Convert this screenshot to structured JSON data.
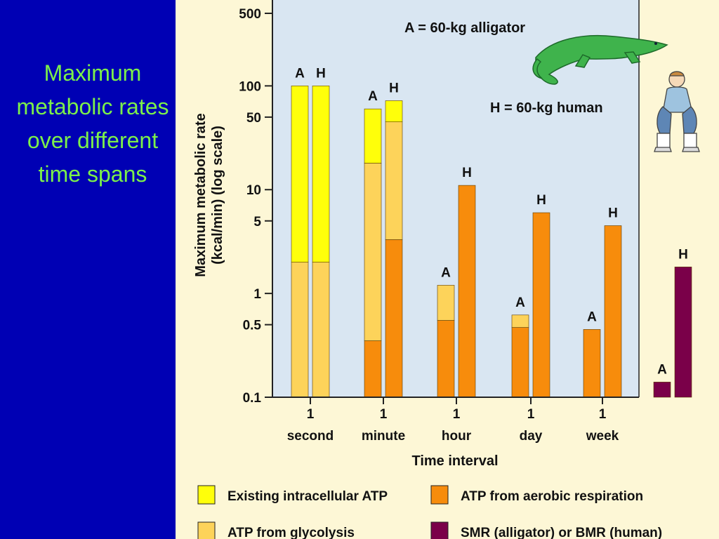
{
  "slide": {
    "title": "Maximum metabolic rates over different time spans"
  },
  "colors": {
    "existing_atp": "#ffff0a",
    "glycolysis": "#fdd35a",
    "aerobic": "#f78c0c",
    "smr_bmr": "#7a0049",
    "plot_bg": "#d9e6f2",
    "panel_bg": "#fdf7d6",
    "alligator": "#3fb34c"
  },
  "icons": [
    "alligator-illustration",
    "seated-human-illustration"
  ],
  "chart_data": {
    "type": "bar",
    "stacked": true,
    "y_scale": "log",
    "ylim": [
      0.1,
      500
    ],
    "ylabel_line1": "Maximum metabolic rate",
    "ylabel_line2": "(kcal/min) (log scale)",
    "xlabel": "Time interval",
    "y_ticks": [
      {
        "value": 500,
        "label": "500"
      },
      {
        "value": 100,
        "label": "100"
      },
      {
        "value": 50,
        "label": "50"
      },
      {
        "value": 10,
        "label": "10"
      },
      {
        "value": 5,
        "label": "5"
      },
      {
        "value": 1,
        "label": "1"
      },
      {
        "value": 0.5,
        "label": "0.5"
      },
      {
        "value": 0.1,
        "label": "0.1"
      }
    ],
    "categories": [
      {
        "line1": "1",
        "line2": "second"
      },
      {
        "line1": "1",
        "line2": "minute"
      },
      {
        "line1": "1",
        "line2": "hour"
      },
      {
        "line1": "1",
        "line2": "day"
      },
      {
        "line1": "1",
        "line2": "week"
      }
    ],
    "annotations": {
      "alligator": "A = 60-kg alligator",
      "human": "H = 60-kg human"
    },
    "legend": [
      {
        "key": "existing_atp",
        "label": "Existing intracellular ATP"
      },
      {
        "key": "aerobic",
        "label": "ATP from aerobic respiration"
      },
      {
        "key": "glycolysis",
        "label": "ATP from glycolysis"
      },
      {
        "key": "smr_bmr",
        "label": "SMR (alligator) or BMR (human)"
      }
    ],
    "bars": [
      {
        "group": 0,
        "letter": "A",
        "segments": [
          {
            "key": "glycolysis",
            "top": 2
          },
          {
            "key": "existing_atp",
            "top": 100
          }
        ]
      },
      {
        "group": 0,
        "letter": "H",
        "segments": [
          {
            "key": "glycolysis",
            "top": 2
          },
          {
            "key": "existing_atp",
            "top": 100
          }
        ]
      },
      {
        "group": 1,
        "letter": "A",
        "segments": [
          {
            "key": "aerobic",
            "top": 0.35
          },
          {
            "key": "glycolysis",
            "top": 18
          },
          {
            "key": "existing_atp",
            "top": 60
          }
        ]
      },
      {
        "group": 1,
        "letter": "H",
        "segments": [
          {
            "key": "aerobic",
            "top": 3.3
          },
          {
            "key": "glycolysis",
            "top": 45
          },
          {
            "key": "existing_atp",
            "top": 72
          }
        ]
      },
      {
        "group": 2,
        "letter": "A",
        "segments": [
          {
            "key": "aerobic",
            "top": 0.55
          },
          {
            "key": "glycolysis",
            "top": 1.2
          }
        ]
      },
      {
        "group": 2,
        "letter": "H",
        "segments": [
          {
            "key": "aerobic",
            "top": 11
          }
        ]
      },
      {
        "group": 3,
        "letter": "A",
        "segments": [
          {
            "key": "aerobic",
            "top": 0.47
          },
          {
            "key": "glycolysis",
            "top": 0.62
          }
        ]
      },
      {
        "group": 3,
        "letter": "H",
        "segments": [
          {
            "key": "aerobic",
            "top": 6
          }
        ]
      },
      {
        "group": 4,
        "letter": "A",
        "segments": [
          {
            "key": "aerobic",
            "top": 0.45
          }
        ]
      },
      {
        "group": 4,
        "letter": "H",
        "segments": [
          {
            "key": "aerobic",
            "top": 4.5
          }
        ]
      },
      {
        "group": 5,
        "letter": "A",
        "segments": [
          {
            "key": "smr_bmr",
            "top": 0.14
          }
        ]
      },
      {
        "group": 5,
        "letter": "H",
        "segments": [
          {
            "key": "smr_bmr",
            "top": 1.8
          }
        ]
      }
    ]
  }
}
